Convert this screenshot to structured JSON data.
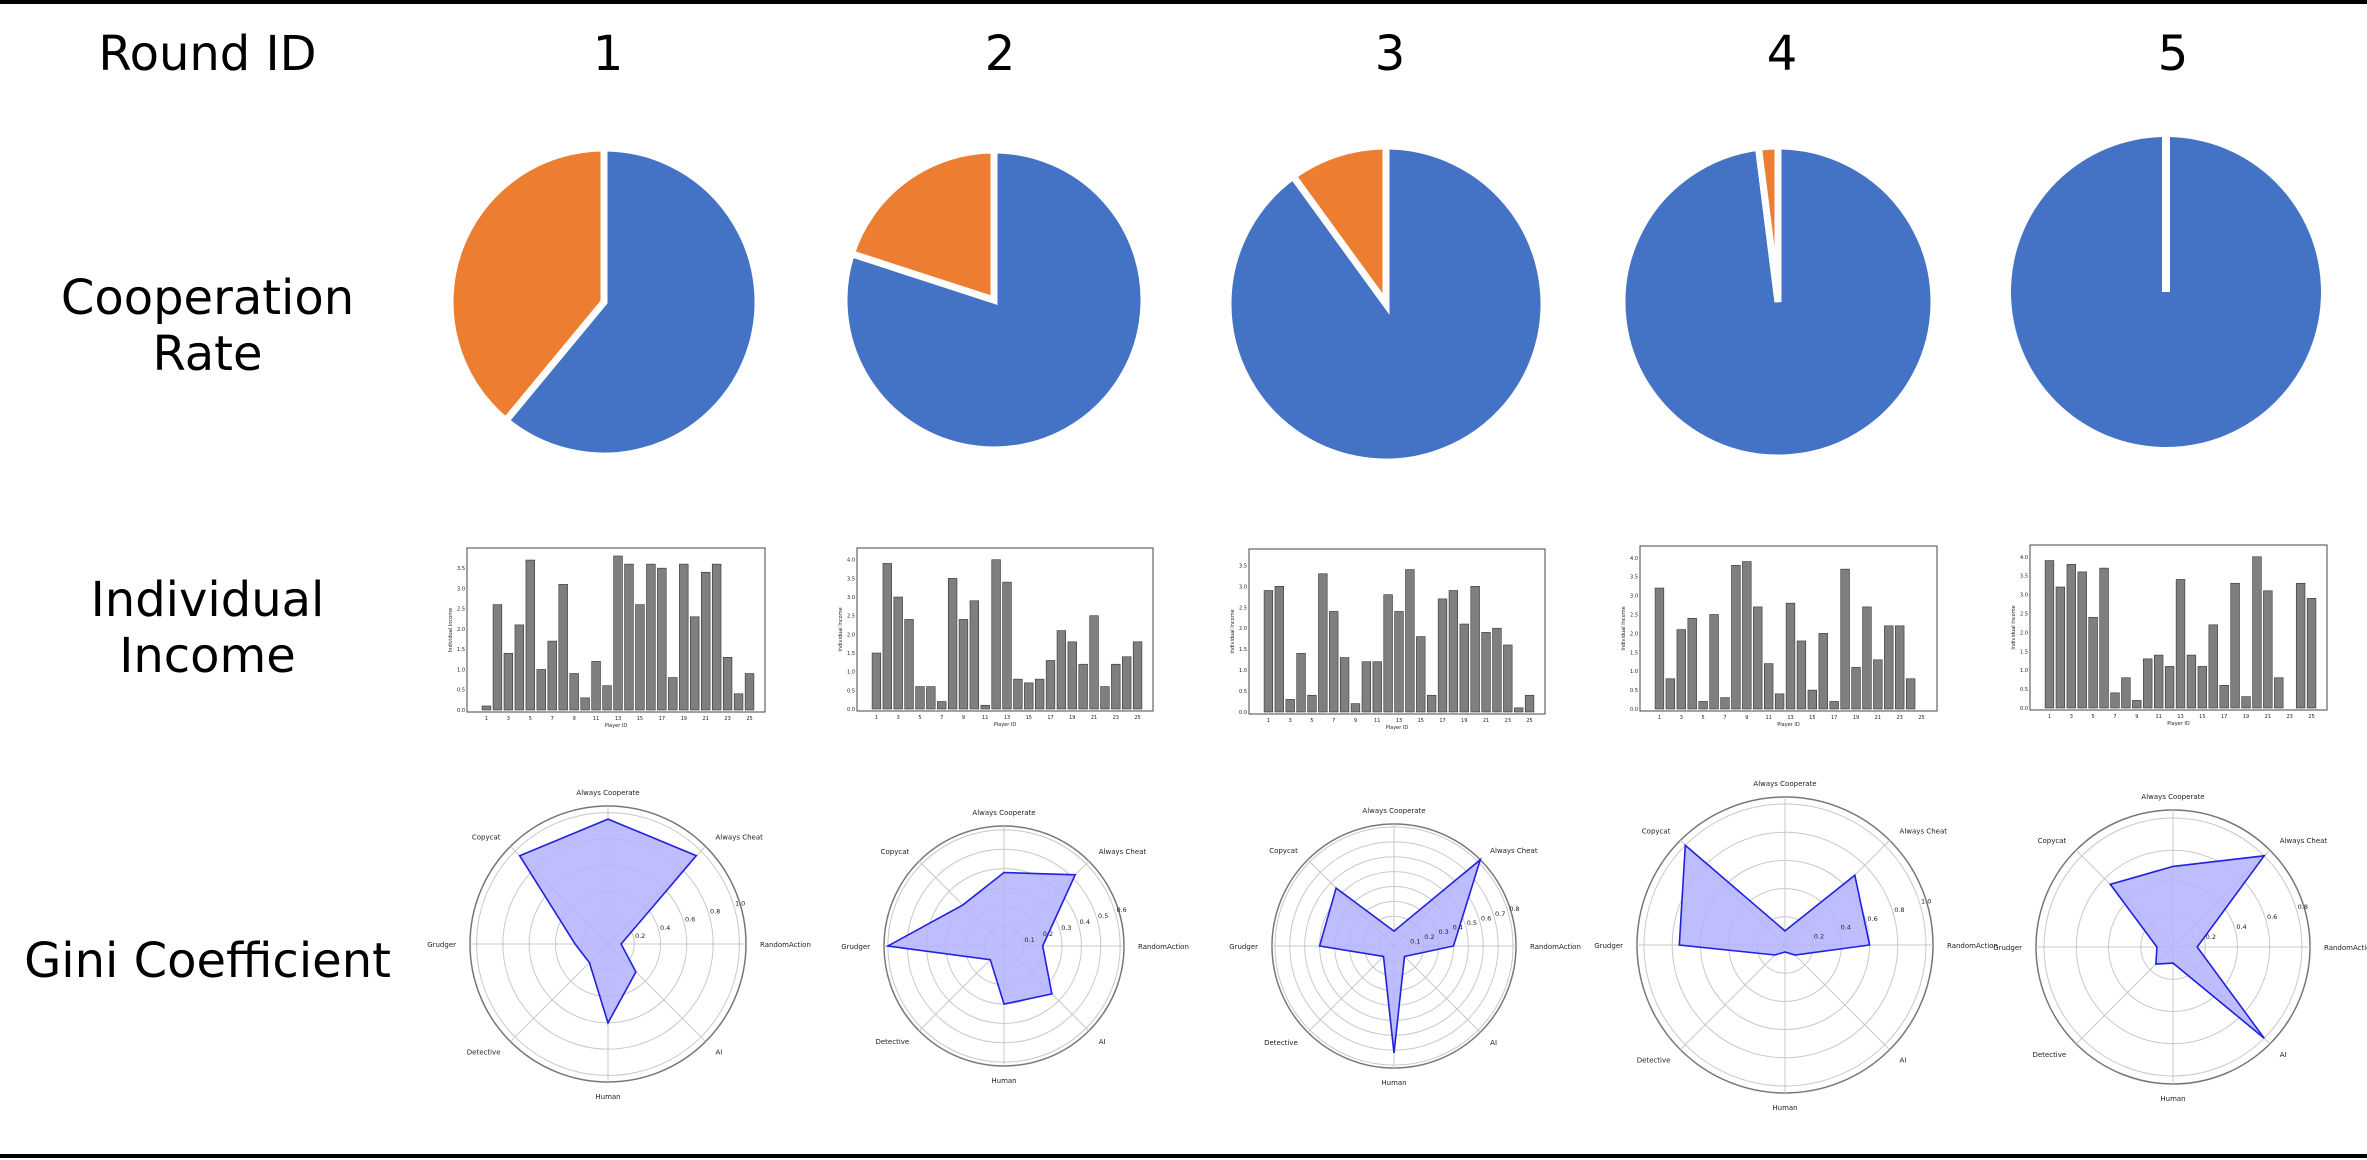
{
  "header": {
    "round_id_label": "Round ID",
    "rounds": [
      "1",
      "2",
      "3",
      "4",
      "5"
    ]
  },
  "rows": {
    "cooperation": "Cooperation Rate",
    "income": "Individual Income",
    "gini": "Gini Coefficient"
  },
  "colors": {
    "cooperate": "#4472C4",
    "cheat": "#ED7D31",
    "bar": "#7f7f7f",
    "radar_fill": "#b3b3ff",
    "radar_line": "#2020dd"
  },
  "chart_data": [
    {
      "type": "pie",
      "round": "1",
      "values": [
        0.61,
        0.39
      ]
    },
    {
      "type": "pie",
      "round": "2",
      "values": [
        0.8,
        0.2
      ]
    },
    {
      "type": "pie",
      "round": "3",
      "values": [
        0.9,
        0.1
      ]
    },
    {
      "type": "pie",
      "round": "4",
      "values": [
        0.98,
        0.02
      ]
    },
    {
      "type": "pie",
      "round": "5",
      "values": [
        1.0,
        0.0
      ]
    },
    {
      "type": "bar",
      "round": "1",
      "xlabel": "Player ID",
      "ylabel": "Individual Income",
      "x": [
        1,
        2,
        3,
        4,
        5,
        6,
        7,
        8,
        9,
        10,
        11,
        12,
        13,
        14,
        15,
        16,
        17,
        18,
        19,
        20,
        21,
        22,
        23,
        24,
        25
      ],
      "xticks": [
        "1",
        "3",
        "5",
        "7",
        "9",
        "11",
        "13",
        "15",
        "17",
        "19",
        "21",
        "23",
        "25"
      ],
      "yticks": [
        "0.0",
        "0.5",
        "1.0",
        "1.5",
        "2.0",
        "2.5",
        "3.0",
        "3.5"
      ],
      "ylim": [
        0,
        3.8
      ],
      "values": [
        0.1,
        2.6,
        1.4,
        2.1,
        3.7,
        1.0,
        1.7,
        3.1,
        0.9,
        0.3,
        1.2,
        0.6,
        3.8,
        3.6,
        2.6,
        3.6,
        3.5,
        0.8,
        3.6,
        2.3,
        3.4,
        3.6,
        1.3,
        0.4,
        0.9
      ]
    },
    {
      "type": "bar",
      "round": "2",
      "xlabel": "Player ID",
      "ylabel": "Individual Income",
      "x": [
        1,
        2,
        3,
        4,
        5,
        6,
        7,
        8,
        9,
        10,
        11,
        12,
        13,
        14,
        15,
        16,
        17,
        18,
        19,
        20,
        21,
        22,
        23,
        24,
        25
      ],
      "xticks": [
        "1",
        "3",
        "5",
        "7",
        "9",
        "11",
        "13",
        "15",
        "17",
        "19",
        "21",
        "23",
        "25"
      ],
      "yticks": [
        "0.0",
        "0.5",
        "1.0",
        "1.5",
        "2.0",
        "2.5",
        "3.0",
        "3.5",
        "4.0"
      ],
      "ylim": [
        0,
        4.1
      ],
      "values": [
        1.5,
        3.9,
        3.0,
        2.4,
        0.6,
        0.6,
        0.2,
        3.5,
        2.4,
        2.9,
        0.1,
        4.0,
        3.4,
        0.8,
        0.7,
        0.8,
        1.3,
        2.1,
        1.8,
        1.2,
        2.5,
        0.6,
        1.2,
        1.4,
        1.8
      ]
    },
    {
      "type": "bar",
      "round": "3",
      "xlabel": "Player ID",
      "ylabel": "Individual Income",
      "x": [
        1,
        2,
        3,
        4,
        5,
        6,
        7,
        8,
        9,
        10,
        11,
        12,
        13,
        14,
        15,
        16,
        17,
        18,
        19,
        20,
        21,
        22,
        23,
        24,
        25
      ],
      "xticks": [
        "1",
        "3",
        "5",
        "7",
        "9",
        "11",
        "13",
        "15",
        "17",
        "19",
        "21",
        "23",
        "25"
      ],
      "yticks": [
        "0.0",
        "0.5",
        "1.0",
        "1.5",
        "2.0",
        "2.5",
        "3.0",
        "3.5"
      ],
      "ylim": [
        0,
        3.7
      ],
      "values": [
        2.9,
        3.0,
        0.3,
        1.4,
        0.4,
        3.3,
        2.4,
        1.3,
        0.2,
        1.2,
        1.2,
        2.8,
        2.4,
        3.4,
        1.8,
        0.4,
        2.7,
        2.9,
        2.1,
        3.0,
        1.9,
        2.0,
        1.6,
        0.1,
        0.4
      ]
    },
    {
      "type": "bar",
      "round": "4",
      "xlabel": "Player ID",
      "ylabel": "Individual Income",
      "x": [
        1,
        2,
        3,
        4,
        5,
        6,
        7,
        8,
        9,
        10,
        11,
        12,
        13,
        14,
        15,
        16,
        17,
        18,
        19,
        20,
        21,
        22,
        23,
        24,
        25
      ],
      "xticks": [
        "1",
        "3",
        "5",
        "7",
        "9",
        "11",
        "13",
        "15",
        "17",
        "19",
        "21",
        "23",
        "25"
      ],
      "yticks": [
        "0.0",
        "0.5",
        "1.0",
        "1.5",
        "2.0",
        "2.5",
        "3.0",
        "3.5",
        "4.0"
      ],
      "ylim": [
        0,
        4.1
      ],
      "values": [
        3.2,
        0.8,
        2.1,
        2.4,
        0.2,
        2.5,
        0.3,
        3.8,
        3.9,
        2.7,
        1.2,
        0.4,
        2.8,
        1.8,
        0.5,
        2.0,
        0.2,
        3.7,
        1.1,
        2.7,
        1.3,
        2.2,
        2.2,
        0.8,
        0.0
      ]
    },
    {
      "type": "bar",
      "round": "5",
      "xlabel": "Player ID",
      "ylabel": "Individual Income",
      "x": [
        1,
        2,
        3,
        4,
        5,
        6,
        7,
        8,
        9,
        10,
        11,
        12,
        13,
        14,
        15,
        16,
        17,
        18,
        19,
        20,
        21,
        22,
        23,
        24,
        25
      ],
      "xticks": [
        "1",
        "3",
        "5",
        "7",
        "9",
        "11",
        "13",
        "15",
        "17",
        "19",
        "21",
        "23",
        "25"
      ],
      "yticks": [
        "0.0",
        "0.5",
        "1.0",
        "1.5",
        "2.0",
        "2.5",
        "3.0",
        "3.5",
        "4.0"
      ],
      "ylim": [
        0,
        4.1
      ],
      "values": [
        3.9,
        3.2,
        3.8,
        3.6,
        2.4,
        3.7,
        0.4,
        0.8,
        0.2,
        1.3,
        1.4,
        1.1,
        3.4,
        1.4,
        1.1,
        2.2,
        0.6,
        3.3,
        0.3,
        4.0,
        3.1,
        0.8,
        0.0,
        3.3,
        2.9
      ]
    },
    {
      "type": "radar",
      "round": "1",
      "axes": [
        "Always Cooperate",
        "Always Cheat",
        "RandomAction",
        "AI",
        "Human",
        "Detective",
        "Grudger",
        "Copycat"
      ],
      "rticks": [
        "0.2",
        "0.4",
        "0.6",
        "0.8",
        "1.0"
      ],
      "rmax": 1.05,
      "values": [
        0.95,
        0.95,
        0.1,
        0.3,
        0.6,
        0.2,
        0.25,
        0.95
      ]
    },
    {
      "type": "radar",
      "round": "2",
      "axes": [
        "Always Cooperate",
        "Always Cheat",
        "RandomAction",
        "AI",
        "Human",
        "Detective",
        "Grudger",
        "Copycat"
      ],
      "rticks": [
        "0.1",
        "0.2",
        "0.3",
        "0.4",
        "0.5",
        "0.6"
      ],
      "rmax": 0.62,
      "values": [
        0.38,
        0.52,
        0.2,
        0.35,
        0.3,
        0.1,
        0.6,
        0.3
      ]
    },
    {
      "type": "radar",
      "round": "3",
      "axes": [
        "Always Cooperate",
        "Always Cheat",
        "RandomAction",
        "AI",
        "Human",
        "Detective",
        "Grudger",
        "Copycat"
      ],
      "rticks": [
        "0.1",
        "0.2",
        "0.3",
        "0.4",
        "0.5",
        "0.6",
        "0.7",
        "0.8"
      ],
      "rmax": 0.82,
      "values": [
        0.1,
        0.82,
        0.4,
        0.1,
        0.72,
        0.1,
        0.5,
        0.55
      ]
    },
    {
      "type": "radar",
      "round": "4",
      "axes": [
        "Always Cooperate",
        "Always Cheat",
        "RandomAction",
        "AI",
        "Human",
        "Detective",
        "Grudger",
        "Copycat"
      ],
      "rticks": [
        "0.2",
        "0.4",
        "0.6",
        "0.8",
        "1.0"
      ],
      "rmax": 1.05,
      "values": [
        0.1,
        0.7,
        0.6,
        0.1,
        0.05,
        0.1,
        0.75,
        1.0
      ]
    },
    {
      "type": "radar",
      "round": "5",
      "axes": [
        "Always Cooperate",
        "Always Cheat",
        "RandomAction",
        "AI",
        "Human",
        "Detective",
        "Grudger",
        "Copycat"
      ],
      "rticks": [
        "0.2",
        "0.4",
        "0.6",
        "0.8"
      ],
      "rmax": 0.85,
      "values": [
        0.5,
        0.8,
        0.15,
        0.8,
        0.1,
        0.15,
        0.1,
        0.55
      ]
    }
  ]
}
